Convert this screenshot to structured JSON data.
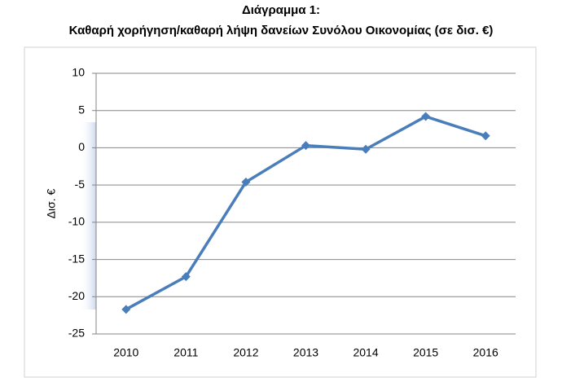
{
  "chart_data": {
    "type": "line",
    "title": "Διάγραμμα 1:",
    "subtitle": "Καθαρή χορήγηση/καθαρή λήψη δανείων Συνόλου Οικονομίας (σε δισ. €)",
    "y_label": "Δισ. €",
    "categories": [
      "2010",
      "2011",
      "2012",
      "2013",
      "2014",
      "2015",
      "2016"
    ],
    "series": [
      {
        "name": "Καθαρή χορήγηση/καθαρή λήψη δανείων",
        "color": "#4a7ebb",
        "values": [
          -21.7,
          -17.3,
          -4.6,
          0.3,
          -0.2,
          4.2,
          1.6
        ]
      }
    ],
    "ylim": [
      -25,
      10
    ],
    "yticks": [
      -25,
      -20,
      -15,
      -10,
      -5,
      0,
      5,
      10
    ],
    "grid": true
  }
}
